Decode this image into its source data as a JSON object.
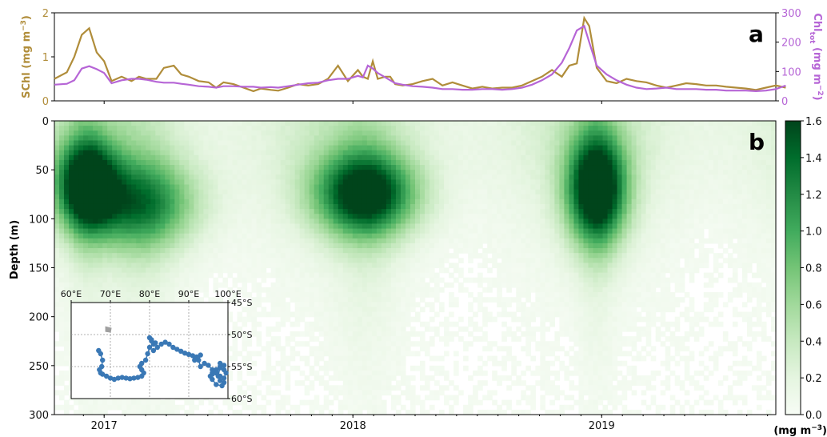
{
  "chart_data": [
    {
      "type": "line",
      "panel_label": "a",
      "ylabel_left": "SChl (mg m",
      "ylabel_left_sup": "−3",
      "ylabel_left_close": ")",
      "ylabel_right": "Chl",
      "ylabel_right_sub": "tot",
      "ylabel_right_units": " (mg m",
      "ylabel_right_sup": "−2",
      "ylabel_right_close": ")",
      "ylim_left": [
        0,
        2
      ],
      "ylim_right": [
        0,
        300
      ],
      "yticks_left": [
        "0",
        "1",
        "2"
      ],
      "yticks_right": [
        "0",
        "100",
        "200",
        "300"
      ],
      "colors": {
        "schl": "#b08d3a",
        "chltot": "#b665d6"
      },
      "x": [
        2016.8,
        2016.85,
        2016.88,
        2016.91,
        2016.94,
        2016.97,
        2017.0,
        2017.03,
        2017.07,
        2017.11,
        2017.14,
        2017.17,
        2017.21,
        2017.24,
        2017.28,
        2017.31,
        2017.34,
        2017.38,
        2017.42,
        2017.45,
        2017.48,
        2017.52,
        2017.56,
        2017.6,
        2017.63,
        2017.67,
        2017.7,
        2017.74,
        2017.78,
        2017.82,
        2017.86,
        2017.9,
        2017.94,
        2017.98,
        2018.02,
        2018.04,
        2018.06,
        2018.08,
        2018.1,
        2018.13,
        2018.15,
        2018.17,
        2018.2,
        2018.24,
        2018.28,
        2018.32,
        2018.36,
        2018.4,
        2018.44,
        2018.48,
        2018.52,
        2018.56,
        2018.6,
        2018.64,
        2018.68,
        2018.72,
        2018.76,
        2018.8,
        2018.84,
        2018.87,
        2018.9,
        2018.93,
        2018.95,
        2018.98,
        2019.02,
        2019.06,
        2019.1,
        2019.14,
        2019.18,
        2019.22,
        2019.26,
        2019.3,
        2019.34,
        2019.38,
        2019.42,
        2019.46,
        2019.5,
        2019.54,
        2019.58,
        2019.62,
        2019.66,
        2019.7,
        2019.74
      ],
      "series": [
        {
          "key": "schl",
          "axis": "left",
          "values": [
            0.5,
            0.65,
            1.0,
            1.5,
            1.65,
            1.1,
            0.9,
            0.45,
            0.55,
            0.45,
            0.55,
            0.5,
            0.5,
            0.75,
            0.8,
            0.6,
            0.55,
            0.45,
            0.42,
            0.3,
            0.42,
            0.38,
            0.3,
            0.22,
            0.28,
            0.25,
            0.23,
            0.3,
            0.38,
            0.35,
            0.38,
            0.5,
            0.8,
            0.45,
            0.7,
            0.55,
            0.5,
            0.9,
            0.5,
            0.55,
            0.55,
            0.38,
            0.35,
            0.38,
            0.45,
            0.5,
            0.35,
            0.42,
            0.35,
            0.28,
            0.32,
            0.28,
            0.3,
            0.3,
            0.35,
            0.45,
            0.55,
            0.7,
            0.55,
            0.8,
            0.85,
            1.88,
            1.7,
            0.75,
            0.45,
            0.4,
            0.5,
            0.45,
            0.42,
            0.35,
            0.3,
            0.35,
            0.4,
            0.38,
            0.35,
            0.35,
            0.32,
            0.3,
            0.28,
            0.25,
            0.3,
            0.35,
            0.3
          ]
        },
        {
          "key": "chltot",
          "axis": "right",
          "values": [
            55,
            58,
            70,
            110,
            118,
            108,
            95,
            60,
            70,
            75,
            75,
            72,
            65,
            62,
            62,
            58,
            55,
            50,
            48,
            45,
            50,
            50,
            48,
            48,
            45,
            47,
            45,
            50,
            55,
            60,
            62,
            70,
            75,
            75,
            85,
            80,
            120,
            110,
            95,
            80,
            70,
            60,
            55,
            50,
            48,
            45,
            40,
            40,
            38,
            38,
            40,
            40,
            38,
            40,
            45,
            55,
            70,
            90,
            130,
            180,
            240,
            255,
            200,
            120,
            90,
            70,
            55,
            45,
            40,
            42,
            45,
            40,
            40,
            40,
            38,
            38,
            35,
            35,
            35,
            33,
            35,
            40,
            52
          ]
        }
      ]
    },
    {
      "type": "heatmap",
      "panel_label": "b",
      "ylabel": "Depth (m)",
      "ylim": [
        300,
        0
      ],
      "yticks": [
        "0",
        "50",
        "100",
        "150",
        "200",
        "250",
        "300"
      ],
      "xticks": [
        "2017",
        "2018",
        "2019"
      ],
      "xlim": [
        2016.8,
        2019.7
      ],
      "colorbar_ticks": [
        "0.0",
        "0.2",
        "0.4",
        "0.6",
        "0.8",
        "1.0",
        "1.2",
        "1.4",
        "1.6"
      ],
      "colorbar_range": [
        0,
        1.6
      ],
      "colorbar_units": "(mg m",
      "colorbar_units_sup": "−3",
      "colorbar_units_close": ")",
      "colormap": [
        "#f7fcf5",
        "#e5f5e0",
        "#c7e9c0",
        "#a1d99b",
        "#74c476",
        "#41ab5d",
        "#238b45",
        "#006d2c",
        "#00441b"
      ],
      "blooms": [
        {
          "center_time": 2016.93,
          "center_depth": 65,
          "width": 0.12,
          "depth_half": 45,
          "peak": 1.7
        },
        {
          "center_time": 2017.15,
          "center_depth": 85,
          "width": 0.22,
          "depth_half": 45,
          "peak": 1.1
        },
        {
          "center_time": 2018.05,
          "center_depth": 75,
          "width": 0.2,
          "depth_half": 42,
          "peak": 1.6
        },
        {
          "center_time": 2018.98,
          "center_depth": 70,
          "width": 0.12,
          "depth_half": 55,
          "peak": 1.8
        }
      ]
    },
    {
      "type": "scatter",
      "name": "float-trajectory-inset",
      "xticks": [
        "60°E",
        "70°E",
        "80°E",
        "90°E",
        "100°E"
      ],
      "yticks": [
        "45°S",
        "50°S",
        "55°S",
        "60°S"
      ],
      "xlim": [
        60,
        100
      ],
      "ylim": [
        -60,
        -45
      ],
      "start_point": {
        "lon": 69.5,
        "lat": -49.2
      },
      "colors": {
        "track": "#3a78b5",
        "start": "#a0a0a0"
      },
      "lon": [
        67,
        67.5,
        68,
        67.8,
        67.2,
        67.5,
        68,
        69,
        70,
        71,
        72,
        73,
        74,
        75,
        76,
        77,
        78,
        78.5,
        78,
        77.5,
        78,
        79,
        79.5,
        80,
        81,
        80.5,
        80,
        80.5,
        81.5,
        82,
        81,
        83,
        84,
        85,
        86,
        87,
        88,
        89,
        90,
        91,
        91.5,
        92,
        93,
        92.5,
        93,
        94,
        95,
        96,
        97,
        98,
        99,
        99.5,
        99,
        98,
        97.5,
        98,
        99,
        98.5,
        97,
        96,
        95.5,
        96,
        97,
        98,
        99,
        98,
        97,
        96
      ],
      "lat": [
        -52.5,
        -53,
        -54,
        -55,
        -55.5,
        -56,
        -56.2,
        -56.5,
        -56.8,
        -57,
        -56.8,
        -56.7,
        -56.8,
        -56.9,
        -56.8,
        -56.7,
        -56.5,
        -56,
        -55.5,
        -55,
        -54.5,
        -54,
        -53,
        -52,
        -51.5,
        -51,
        -50.5,
        -50.8,
        -51.3,
        -52,
        -52.5,
        -51.5,
        -51.2,
        -51.5,
        -52,
        -52.3,
        -52.6,
        -52.9,
        -53.1,
        -53.3,
        -54,
        -53.5,
        -53.2,
        -54,
        -55,
        -54.5,
        -54.8,
        -55.5,
        -56,
        -56.5,
        -56.8,
        -56,
        -55.5,
        -55,
        -56.5,
        -57.2,
        -57.5,
        -58,
        -57.8,
        -57,
        -56.5,
        -56,
        -55.5,
        -55.2,
        -54.8,
        -54.5,
        -55.8,
        -56.2
      ]
    }
  ]
}
